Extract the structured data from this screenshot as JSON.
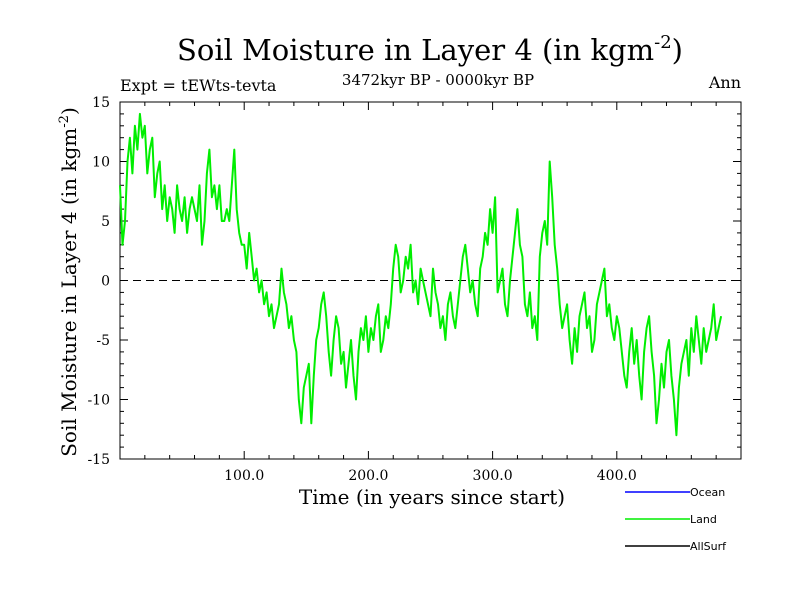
{
  "chart_data": {
    "type": "line",
    "title": "Soil Moisture in Layer 4 (in kgm",
    "title_sup": "-2",
    "title_end": ")",
    "subtitle": "3472kyr BP - 0000kyr BP",
    "experiment_label": "Expt = tEWts-tevta",
    "season_label": "Ann",
    "xlabel": "Time (in years since start)",
    "ylabel": "Soil Moisture in Layer 4 (in kgm",
    "ylabel_sup": "-2",
    "ylabel_end": ")",
    "xlim": [
      0,
      500
    ],
    "ylim": [
      -15,
      15
    ],
    "x_ticks": [
      100,
      200,
      300,
      400
    ],
    "x_tick_labels": [
      "100.0",
      "200.0",
      "300.0",
      "400.0"
    ],
    "y_ticks": [
      -15,
      -10,
      -5,
      0,
      5,
      10,
      15
    ],
    "y_tick_labels": [
      "-15",
      "-10",
      "-5",
      "0",
      "5",
      "10",
      "15"
    ],
    "zero_line": true,
    "grid": false,
    "legend": [
      {
        "name": "Ocean",
        "color": "#0000ff"
      },
      {
        "name": "Land",
        "color": "#00ee00"
      },
      {
        "name": "AllSurf",
        "color": "#000000"
      }
    ],
    "series": [
      {
        "name": "Land",
        "color": "#00ee00",
        "x_start": 0,
        "x_step": 2,
        "values": [
          8,
          3,
          5,
          10,
          12,
          9,
          13,
          11,
          14,
          12,
          13,
          9,
          11,
          12,
          7,
          9,
          10,
          6,
          8,
          5,
          7,
          6,
          4,
          8,
          6,
          5,
          7,
          4,
          6,
          7,
          6,
          5,
          8,
          3,
          5,
          9,
          11,
          7,
          8,
          6,
          8,
          5,
          5,
          6,
          5,
          8,
          11,
          6,
          4,
          3,
          3,
          1,
          4,
          2,
          0,
          1,
          -1,
          0,
          -2,
          -1,
          -3,
          -2,
          -4,
          -3,
          -2,
          1,
          -1,
          -2,
          -4,
          -3,
          -5,
          -6,
          -10,
          -12,
          -9,
          -8,
          -7,
          -12,
          -8,
          -5,
          -4,
          -2,
          -1,
          -3,
          -6,
          -8,
          -5,
          -3,
          -4,
          -7,
          -6,
          -9,
          -7,
          -5,
          -8,
          -10,
          -6,
          -4,
          -5,
          -3,
          -6,
          -4,
          -5,
          -3,
          -2,
          -6,
          -5,
          -3,
          -4,
          -2,
          1,
          3,
          2,
          -1,
          0,
          2,
          1,
          3,
          -1,
          0,
          -2,
          1,
          0,
          -1,
          -2,
          -3,
          1,
          -1,
          -2,
          -4,
          -3,
          -5,
          -2,
          -1,
          -3,
          -4,
          -2,
          0,
          2,
          3,
          1,
          -1,
          0,
          -2,
          -3,
          1,
          2,
          4,
          3,
          6,
          4,
          7,
          -1,
          0,
          1,
          -2,
          -3,
          0,
          2,
          4,
          6,
          3,
          2,
          -2,
          -3,
          -1,
          -4,
          -3,
          -5,
          2,
          4,
          5,
          3,
          10,
          7,
          3,
          1,
          -2,
          -4,
          -3,
          -2,
          -5,
          -7,
          -4,
          -6,
          -3,
          -2,
          -1,
          -4,
          -3,
          -6,
          -5,
          -2,
          -1,
          0,
          1,
          -3,
          -2,
          -4,
          -5,
          -3,
          -4,
          -6,
          -8,
          -9,
          -6,
          -4,
          -7,
          -5,
          -8,
          -10,
          -6,
          -4,
          -3,
          -6,
          -8,
          -12,
          -10,
          -7,
          -9,
          -6,
          -5,
          -8,
          -10,
          -13,
          -9,
          -7,
          -6,
          -5,
          -8,
          -4,
          -6,
          -3,
          -5,
          -7,
          -4,
          -6,
          -5,
          -4,
          -2,
          -5,
          -4,
          -3
        ]
      }
    ]
  }
}
